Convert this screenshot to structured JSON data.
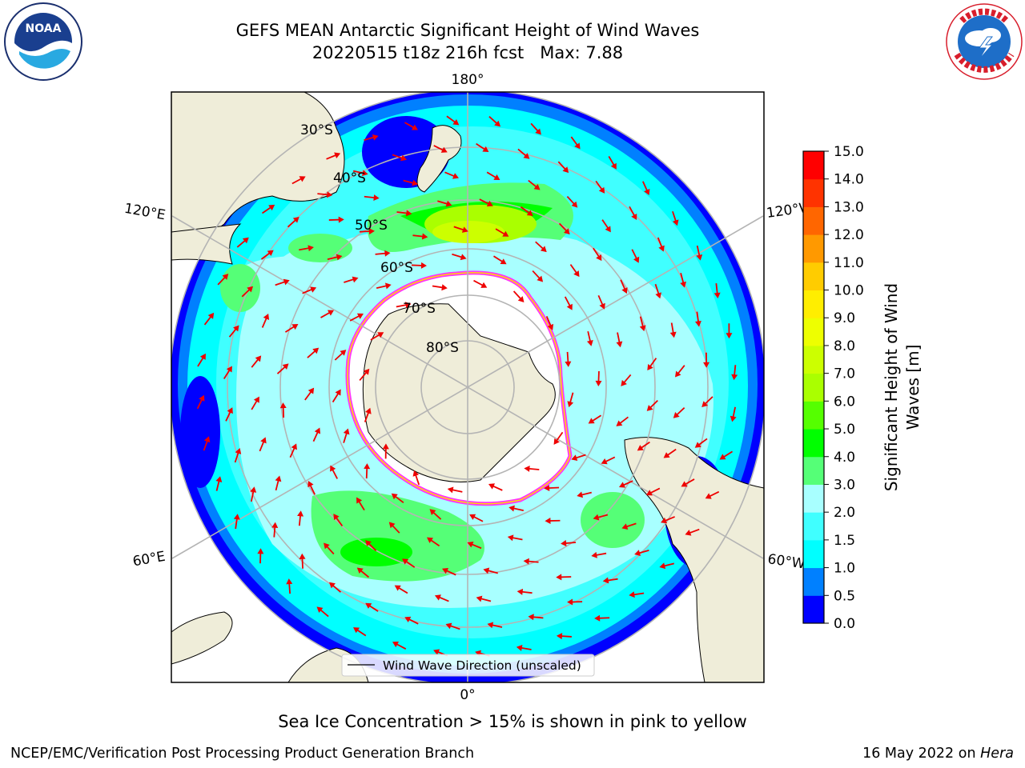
{
  "header": {
    "title_line1": "GEFS MEAN Antarctic Significant Height of Wind Waves",
    "title_line2": "20220515 t18z 216h fcst   Max: 7.88"
  },
  "logos": {
    "left": {
      "name": "noaa-logo",
      "text": "NOAA",
      "ring_text": "NATIONAL OCEANIC AND ATMOSPHERIC ADMINISTRATION · U.S. DEPARTMENT OF COMMERCE"
    },
    "right": {
      "name": "nws-logo",
      "ring_text": "NATIONAL WEATHER SERVICE"
    }
  },
  "map": {
    "projection": "south-polar-stereographic",
    "longitude_labels": {
      "top": "180°",
      "bottom": "0°",
      "left_upper": "120°E",
      "left_lower": "60°E",
      "right_upper": "120°W",
      "right_lower": "60°W"
    },
    "latitude_labels": [
      "30°S",
      "40°S",
      "50°S",
      "60°S",
      "70°S",
      "80°S"
    ],
    "legend_label": "Wind Wave Direction (unscaled)",
    "colors": {
      "land": "#efedd9",
      "sea_ice": "#ffffff",
      "ice_edge": "#ff33ff",
      "arrows": "#ee0000",
      "graticule": "#b4b4b4"
    }
  },
  "colorbar": {
    "label": "Significant Height of Wind Waves [m]",
    "ticks": [
      "0.0",
      "0.5",
      "1.0",
      "1.5",
      "2.0",
      "3.0",
      "4.0",
      "5.0",
      "6.0",
      "7.0",
      "8.0",
      "9.0",
      "10.0",
      "11.0",
      "12.0",
      "13.0",
      "14.0",
      "15.0"
    ],
    "colors": [
      "#0000ff",
      "#0080ff",
      "#00ffff",
      "#40ffff",
      "#a8ffff",
      "#55ff77",
      "#00ff00",
      "#55ff00",
      "#aaff00",
      "#ccff00",
      "#eeff00",
      "#ffee00",
      "#ffcc00",
      "#ff9900",
      "#ff6600",
      "#ff3300",
      "#ff0000"
    ]
  },
  "footer": {
    "caption": "Sea Ice Concentration > 15% is shown in pink to yellow",
    "left": "NCEP/EMC/Verification Post Processing Product Generation Branch",
    "right_date": "16 May 2022 on",
    "right_host": "Hera"
  }
}
